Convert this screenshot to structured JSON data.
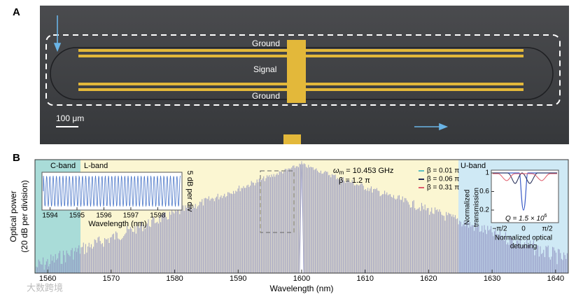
{
  "panel_a": {
    "label": "A",
    "ground_top": "Ground",
    "signal": "Signal",
    "ground_bottom": "Ground",
    "scale_bar": "100 μm"
  },
  "panel_b": {
    "label": "B",
    "band_c": "C-band",
    "band_l": "L-band",
    "band_u": "U-band",
    "y_label": [
      "Optical power",
      "(20 dB per division)"
    ],
    "x_label": "Wavelength (nm)",
    "xlim": [
      1558,
      1642
    ],
    "xticks": [
      1560,
      1570,
      1580,
      1590,
      1600,
      1610,
      1620,
      1630,
      1640
    ],
    "omega": {
      "symbol": "ω",
      "sub": "m",
      "text": " = 10.453 GHz"
    },
    "beta": "β = 1.2 π",
    "legend": [
      {
        "name": "β = 0.01 π",
        "color": "#5bbfc0"
      },
      {
        "name": "β = 0.06 π",
        "color": "#222a55"
      },
      {
        "name": "β = 0.31 π",
        "color": "#e05a6a"
      }
    ],
    "inset_spectrum": {
      "xlim": [
        1593.7,
        1598.9
      ],
      "xticks": [
        1594,
        1595,
        1596,
        1597,
        1598
      ],
      "x_label": "Wavelength (nm)",
      "y_label": "5 dB per div"
    },
    "inset_transmission": {
      "y_label": [
        "Normalized",
        "transmission"
      ],
      "yticks": [
        1,
        0.6,
        0.2
      ],
      "xticks": [
        "−π/2",
        "0",
        "π/2"
      ],
      "x_label": [
        "Normalized optical",
        "detuning"
      ],
      "q": {
        "text": "Q = 1.5 × 10",
        "sup": "6"
      }
    }
  },
  "watermark": "大数跨境"
}
